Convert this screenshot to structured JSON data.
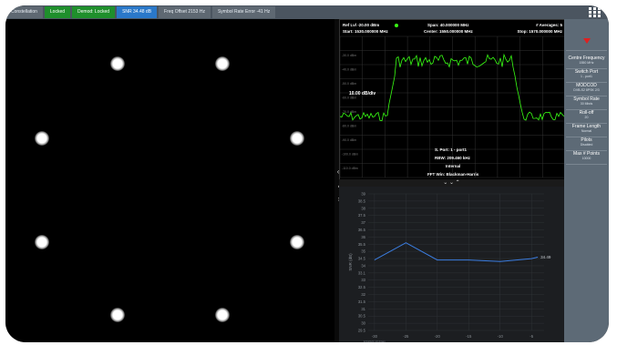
{
  "status_bar": {
    "items": [
      {
        "label": "Constellation",
        "style": "gray"
      },
      {
        "label": "Locked",
        "style": "green"
      },
      {
        "label": "Demod: Locked",
        "style": "green"
      },
      {
        "label": "SNR 34.48 dB",
        "style": "blue"
      },
      {
        "label": "Freq Offset 2153 Hz",
        "style": "gray"
      },
      {
        "label": "Symbol Rate Error -41 Hz",
        "style": "gray"
      }
    ]
  },
  "spectrum": {
    "ref_level": "Ref Lvl -20.00 dBm",
    "span": "Span: 40.000000 MHz",
    "averages": "# Averages: 5",
    "start": "Start: 1530.000000 MHz",
    "center": "Center: 1550.000000 MHz",
    "stop": "Stop: 1570.000000 MHz",
    "scale": "10.00 dB/div",
    "y_ticks": [
      "-30.0 dBm",
      "-40.0 dBm",
      "-50.0 dBm",
      "-60.0 dBm",
      "-70.0 dBm",
      "-80.0 dBm",
      "-90.0 dBm",
      "-100.0 dBm",
      "-110.0 dBm",
      "-120.0 dBm"
    ],
    "port": "S. Port: 1 - port1",
    "rbw": "RBW: 209.460 kHz",
    "mode": "Internal",
    "fft": "FFT Win: Blackman-Harris",
    "trace_color": "#39ff14"
  },
  "side_panel": {
    "items": [
      {
        "title": "Centre Frequency",
        "value": "1550 MHz"
      },
      {
        "title": "Switch Port",
        "value": "1 - port1"
      },
      {
        "title": "MODCOD",
        "value": "DVB-S2 8PSK 2/3"
      },
      {
        "title": "Symbol Rate",
        "value": "30 Mbds"
      },
      {
        "title": "Roll-off",
        "value": "20"
      },
      {
        "title": "Frame Length",
        "value": "Normal"
      },
      {
        "title": "Pilots",
        "value": "Disabled"
      },
      {
        "title": "Max # Points",
        "value": "10000"
      }
    ]
  },
  "chevrons": "⌄  ⌄  ⌃",
  "chart_data": {
    "type": "line",
    "ylabel": "SNR (dB)",
    "ylim": [
      29.5,
      39
    ],
    "y_ticks": [
      39,
      38.5,
      38,
      37.5,
      37,
      36.5,
      36,
      35.5,
      35,
      34.5,
      34,
      33.1,
      33,
      32.5,
      32,
      31.5,
      31,
      30.5,
      30,
      29.5
    ],
    "x_ticks": [
      "-30",
      "-25",
      "-20",
      "-15",
      "-10",
      "-5"
    ],
    "x_sublabel": "9/3/2020 10:23am",
    "series": [
      {
        "values_x": [
          -30,
          -25,
          -20,
          -15,
          -10,
          -5,
          -4
        ],
        "values_y": [
          34.4,
          35.6,
          34.4,
          34.4,
          34.3,
          34.5,
          34.6
        ],
        "color": "#3b7de0"
      }
    ],
    "last_value_label": "34.49",
    "grid": true
  }
}
